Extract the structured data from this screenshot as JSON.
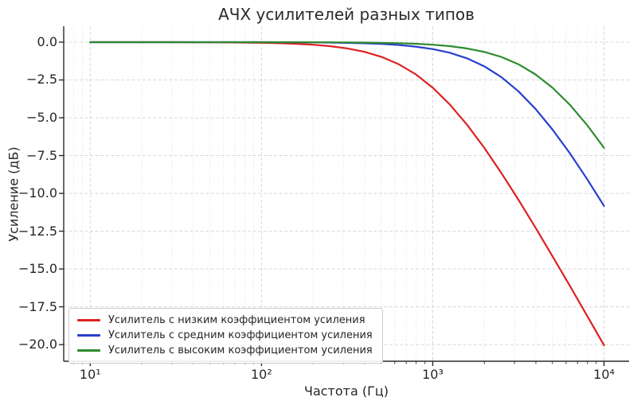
{
  "chart_data": {
    "type": "line",
    "title": "АЧХ усилителей разных типов",
    "xlabel": "Частота (Гц)",
    "ylabel": "Усиление (дБ)",
    "xscale": "log",
    "xlim": [
      7.0,
      14000
    ],
    "ylim": [
      -21.1,
      1.05
    ],
    "grid": true,
    "legend_position": "lower left",
    "x_ticks": {
      "values": [
        10,
        100,
        1000,
        10000
      ],
      "labels": [
        "10¹",
        "10²",
        "10³",
        "10⁴"
      ]
    },
    "y_ticks": {
      "values": [
        0,
        -2.5,
        -5,
        -7.5,
        -10,
        -12.5,
        -15,
        -17.5,
        -20
      ],
      "labels": [
        "0.0",
        "−2.5",
        "−5.0",
        "−7.5",
        "−10.0",
        "−12.5",
        "−15.0",
        "−17.5",
        "−20.0"
      ]
    },
    "x": [
      10,
      12.6,
      15.8,
      20,
      25.1,
      31.6,
      39.8,
      50.1,
      63.1,
      79.4,
      100,
      125.9,
      158.5,
      199.5,
      251.2,
      316.2,
      398.1,
      501.2,
      631,
      794.3,
      1000,
      1258.9,
      1584.9,
      1995.3,
      2511.9,
      3162.3,
      3981.1,
      5011.9,
      6309.6,
      7943.3,
      10000
    ],
    "series": [
      {
        "name": "Усилитель с низким коэффициентом усиления",
        "color": "#dd2121",
        "cutoff_hz": 1000,
        "values": [
          -0.0004,
          -0.0007,
          -0.0011,
          -0.0017,
          -0.0027,
          -0.0043,
          -0.0069,
          -0.0109,
          -0.0173,
          -0.0273,
          -0.0432,
          -0.0683,
          -0.1077,
          -0.1694,
          -0.2657,
          -0.4139,
          -0.6387,
          -0.9726,
          -1.4563,
          -2.1244,
          -3.0103,
          -4.1252,
          -5.4558,
          -6.9732,
          -8.6389,
          -10.4139,
          -12.2663,
          -14.1705,
          -16.1081,
          -18.0676,
          -20.0432
        ]
      },
      {
        "name": "Усилитель с средним коэффициентом усиления",
        "color": "#2a3ecb",
        "cutoff_hz": 3000,
        "values": [
          -0.0001,
          -0.0001,
          -0.0001,
          -0.0002,
          -0.0003,
          -0.0005,
          -0.0008,
          -0.0012,
          -0.0019,
          -0.003,
          -0.0048,
          -0.0076,
          -0.0121,
          -0.0192,
          -0.0303,
          -0.048,
          -0.0758,
          -0.1196,
          -0.188,
          -0.2943,
          -0.4576,
          -0.7036,
          -1.0706,
          -1.5913,
          -2.3073,
          -3.2468,
          -4.4096,
          -5.7872,
          -7.3425,
          -9.0363,
          -10.8279
        ]
      },
      {
        "name": "Усилитель с высоким коэффициентом усиления",
        "color": "#2e8b2e",
        "cutoff_hz": 5000,
        "values": [
          -0.0001,
          -0.0001,
          -0.0001,
          -0.0001,
          -0.0001,
          -0.0002,
          -0.0003,
          -0.0004,
          -0.0007,
          -0.0011,
          -0.0017,
          -0.0028,
          -0.0044,
          -0.0069,
          -0.011,
          -0.0173,
          -0.0274,
          -0.0434,
          -0.0686,
          -0.1082,
          -0.1703,
          -0.2669,
          -0.4159,
          -0.6417,
          -0.9768,
          -1.4613,
          -2.1328,
          -3.0207,
          -4.1375,
          -5.4696,
          -6.9897
        ]
      }
    ]
  }
}
